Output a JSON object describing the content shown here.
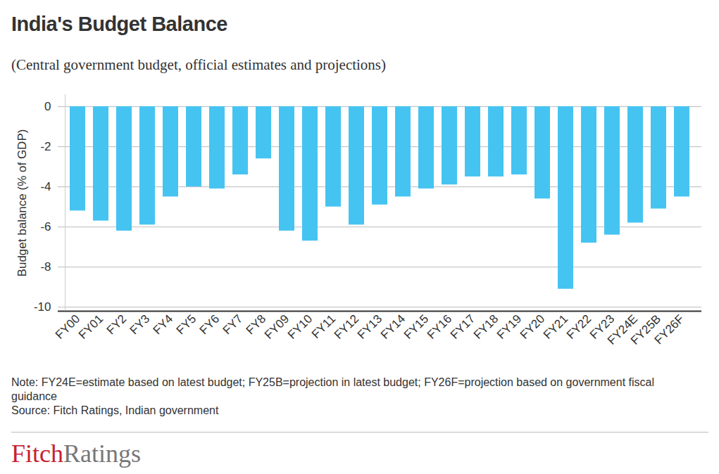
{
  "chart_data": {
    "type": "bar",
    "title": "India's Budget Balance",
    "subtitle": "(Central government budget, official estimates and projections)",
    "y_label": "Budget balance (% of GDP)",
    "categories": [
      "FY00",
      "FY01",
      "FY2",
      "FY3",
      "FY4",
      "FY5",
      "FY6",
      "FY7",
      "FY8",
      "FY09",
      "FY10",
      "FY11",
      "FY12",
      "FY13",
      "FY14",
      "FY15",
      "FY16",
      "FY17",
      "FY18",
      "FY19",
      "FY20",
      "FY21",
      "FY22",
      "FY23",
      "FY24E",
      "FY25B",
      "FY26F"
    ],
    "values": [
      -5.2,
      -5.7,
      -6.2,
      -5.9,
      -4.5,
      -4.0,
      -4.1,
      -3.4,
      -2.6,
      -6.2,
      -6.7,
      -5.0,
      -5.9,
      -4.9,
      -4.5,
      -4.1,
      -3.9,
      -3.5,
      -3.5,
      -3.4,
      -4.6,
      -9.1,
      -6.8,
      -6.4,
      -5.8,
      -5.1,
      -4.5
    ],
    "color": "#45c4f2",
    "ylim": [
      -10.2,
      0.6
    ],
    "yticks": [
      0,
      -2,
      -4,
      -6,
      -8,
      -10
    ],
    "grid": true,
    "note": "Note: FY24E=estimate based on latest budget; FY25B=projection in latest budget; FY26F=projection based on government fiscal guidance",
    "source": "Source: Fitch Ratings, Indian government",
    "logo": [
      "Fitch",
      "Ratings"
    ]
  }
}
